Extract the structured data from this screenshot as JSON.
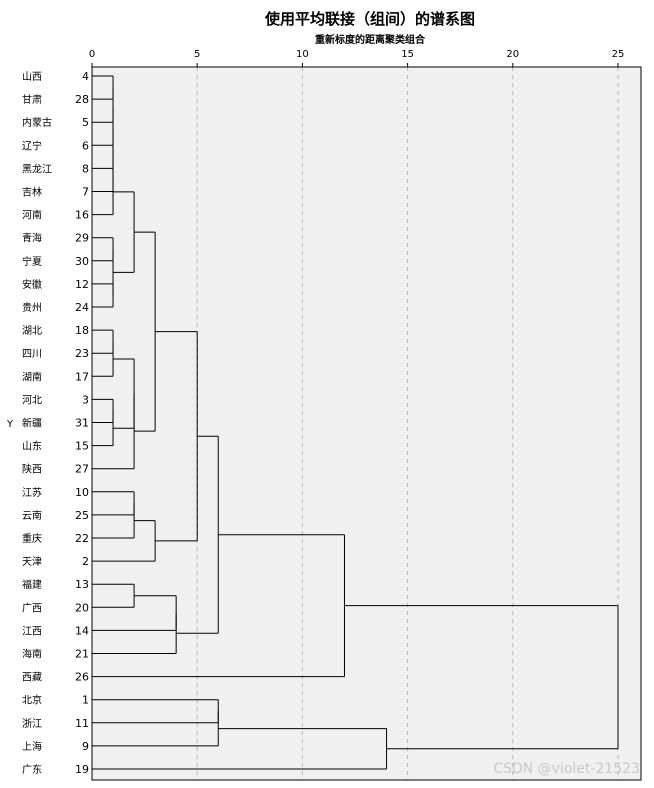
{
  "title": "使用平均联接（组间）的谱系图",
  "subtitle": "重新标度的距离聚类组合",
  "y_axis_label": "Y",
  "watermark": "CSDN @violet-21523",
  "x_axis": {
    "ticks": [
      0,
      5,
      10,
      15,
      20,
      25
    ],
    "min": 0,
    "max": 25
  },
  "colors": {
    "plot_bg": "#f0f0f0",
    "line": "#000000",
    "grid": "#b4b4b4",
    "watermark": "#c9c9c9"
  },
  "rows": [
    {
      "name": "山西",
      "id": "4"
    },
    {
      "name": "甘肃",
      "id": "28"
    },
    {
      "name": "内蒙古",
      "id": "5"
    },
    {
      "name": "辽宁",
      "id": "6"
    },
    {
      "name": "黑龙江",
      "id": "8"
    },
    {
      "name": "吉林",
      "id": "7"
    },
    {
      "name": "河南",
      "id": "16"
    },
    {
      "name": "青海",
      "id": "29"
    },
    {
      "name": "宁夏",
      "id": "30"
    },
    {
      "name": "安徽",
      "id": "12"
    },
    {
      "name": "贵州",
      "id": "24"
    },
    {
      "name": "湖北",
      "id": "18"
    },
    {
      "name": "四川",
      "id": "23"
    },
    {
      "name": "湖南",
      "id": "17"
    },
    {
      "name": "河北",
      "id": "3"
    },
    {
      "name": "新疆",
      "id": "31"
    },
    {
      "name": "山东",
      "id": "15"
    },
    {
      "name": "陕西",
      "id": "27"
    },
    {
      "name": "江苏",
      "id": "10"
    },
    {
      "name": "云南",
      "id": "25"
    },
    {
      "name": "重庆",
      "id": "22"
    },
    {
      "name": "天津",
      "id": "2"
    },
    {
      "name": "福建",
      "id": "13"
    },
    {
      "name": "广西",
      "id": "20"
    },
    {
      "name": "江西",
      "id": "14"
    },
    {
      "name": "海南",
      "id": "21"
    },
    {
      "name": "西藏",
      "id": "26"
    },
    {
      "name": "北京",
      "id": "1"
    },
    {
      "name": "浙江",
      "id": "11"
    },
    {
      "name": "上海",
      "id": "9"
    },
    {
      "name": "广东",
      "id": "19"
    }
  ],
  "merges": [
    {
      "a": 0,
      "b": 1,
      "d": 1.0
    },
    {
      "a": 31,
      "b": 2,
      "d": 1.0
    },
    {
      "a": 32,
      "b": 3,
      "d": 1.0
    },
    {
      "a": 33,
      "b": 4,
      "d": 1.0
    },
    {
      "a": 34,
      "b": 5,
      "d": 1.0
    },
    {
      "a": 35,
      "b": 6,
      "d": 1.0
    },
    {
      "a": 7,
      "b": 8,
      "d": 1.0
    },
    {
      "a": 9,
      "b": 10,
      "d": 1.0
    },
    {
      "a": 37,
      "b": 38,
      "d": 1.0
    },
    {
      "a": 36,
      "b": 39,
      "d": 2.0
    },
    {
      "a": 11,
      "b": 12,
      "d": 1.0
    },
    {
      "a": 41,
      "b": 13,
      "d": 1.0
    },
    {
      "a": 14,
      "b": 15,
      "d": 1.0
    },
    {
      "a": 43,
      "b": 16,
      "d": 1.0
    },
    {
      "a": 42,
      "b": 44,
      "d": 2.0
    },
    {
      "a": 45,
      "b": 17,
      "d": 2.0
    },
    {
      "a": 40,
      "b": 46,
      "d": 3.0
    },
    {
      "a": 18,
      "b": 19,
      "d": 2.0
    },
    {
      "a": 48,
      "b": 20,
      "d": 2.0
    },
    {
      "a": 49,
      "b": 21,
      "d": 3.0
    },
    {
      "a": 47,
      "b": 50,
      "d": 5.0
    },
    {
      "a": 22,
      "b": 23,
      "d": 2.0
    },
    {
      "a": 52,
      "b": 24,
      "d": 4.0
    },
    {
      "a": 53,
      "b": 25,
      "d": 4.0
    },
    {
      "a": 51,
      "b": 54,
      "d": 6.0
    },
    {
      "a": 55,
      "b": 26,
      "d": 12.0
    },
    {
      "a": 27,
      "b": 28,
      "d": 6.0
    },
    {
      "a": 57,
      "b": 29,
      "d": 6.0
    },
    {
      "a": 58,
      "b": 30,
      "d": 14.0
    },
    {
      "a": 56,
      "b": 59,
      "d": 25.0
    }
  ]
}
